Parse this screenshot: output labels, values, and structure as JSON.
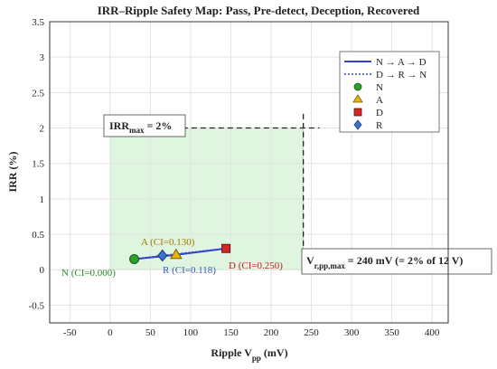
{
  "chart_data": {
    "type": "line",
    "title": "IRR–Ripple Safety Map: Pass, Pre-detect, Deception, Recovered",
    "xlabel": {
      "main": "Ripple V",
      "sub": "pp",
      "unit": " (mV)"
    },
    "ylabel": "IRR (%)",
    "xlim": [
      -75,
      420
    ],
    "ylim": [
      -0.75,
      3.5
    ],
    "xticks": [
      -50,
      0,
      50,
      100,
      150,
      200,
      250,
      300,
      350,
      400
    ],
    "yticks": [
      -0.5,
      0,
      0.5,
      1,
      1.5,
      2,
      2.5,
      3,
      3.5
    ],
    "xtick_labels": [
      "-50",
      "0",
      "50",
      "100",
      "150",
      "200",
      "250",
      "300",
      "350",
      "400"
    ],
    "ytick_labels": [
      "-0.5",
      "0",
      "0.5",
      "1",
      "1.5",
      "2",
      "2.5",
      "3",
      "3.5"
    ],
    "grid": true,
    "safe_region": {
      "x": [
        0,
        240
      ],
      "y": [
        0,
        2
      ],
      "color": "#dff5df"
    },
    "limits": {
      "irr_max": 2,
      "v_max": 240
    },
    "series": [
      {
        "name": "N → A → D",
        "style": "solid",
        "color": "#3344cc",
        "x": [
          30,
          82,
          144
        ],
        "y": [
          0.15,
          0.21,
          0.3
        ]
      },
      {
        "name": "D → R → N",
        "style": "dotted",
        "color": "#3344cc",
        "x": [
          144,
          65,
          30
        ],
        "y": [
          0.3,
          0.2,
          0.15
        ]
      }
    ],
    "points": [
      {
        "id": "N",
        "x": 30,
        "y": 0.15,
        "marker": "circle",
        "color": "#2ca02c",
        "label": "N  (CI=0.000)"
      },
      {
        "id": "A",
        "x": 82,
        "y": 0.21,
        "marker": "triangle",
        "color": "#e8b40c",
        "label": "A  (CI=0.130)"
      },
      {
        "id": "D",
        "x": 144,
        "y": 0.3,
        "marker": "square",
        "color": "#d62728",
        "label": "D  (CI=0.250)"
      },
      {
        "id": "R",
        "x": 65,
        "y": 0.2,
        "marker": "diamond",
        "color": "#3b73cf",
        "label": "R  (CI=0.118)"
      }
    ],
    "annotations": {
      "irr_box": {
        "main": "IRR",
        "sub": "max",
        "rest": " = 2%"
      },
      "v_box": {
        "main": "V",
        "sub": "r,pp,max",
        "rest": " = 240 mV (= 2% of 12 V)"
      }
    },
    "legend": {
      "position": "top-right",
      "entries": [
        "N → A → D",
        "D → R → N",
        "N",
        "A",
        "D",
        "R"
      ]
    }
  }
}
